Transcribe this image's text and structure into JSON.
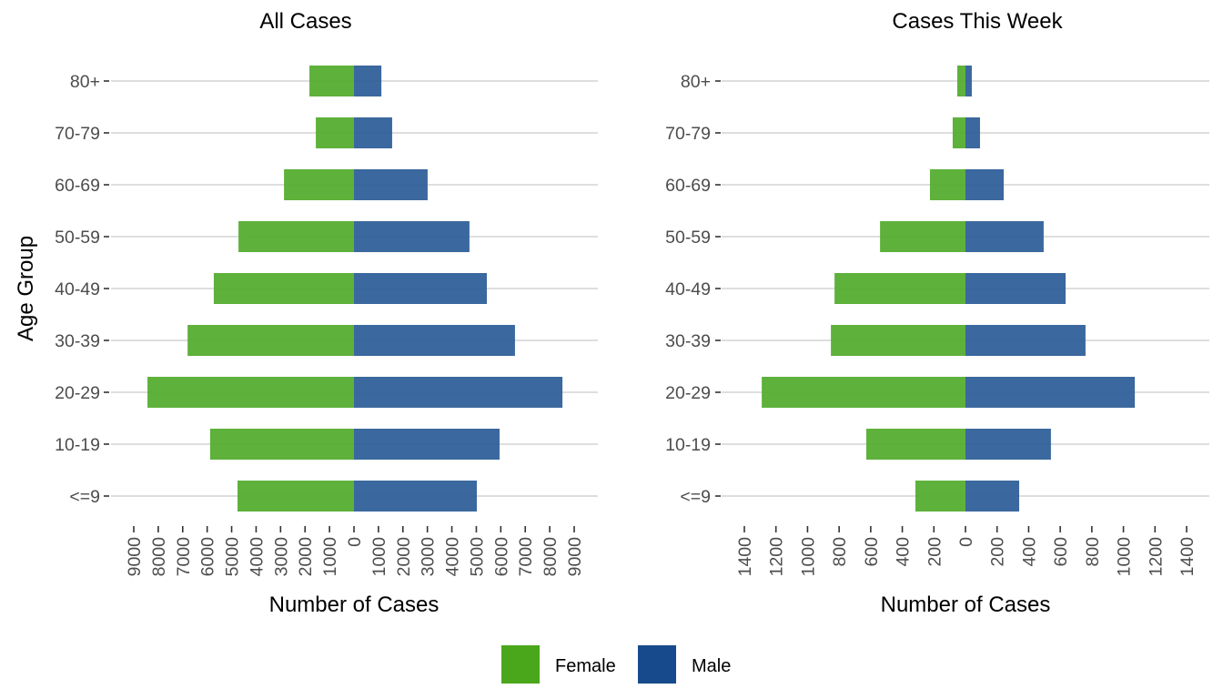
{
  "chart_data": [
    {
      "type": "bar",
      "orientation": "horizontal-diverging",
      "title": "All Cases",
      "xlabel": "Number of Cases",
      "ylabel": "Age Group",
      "categories": [
        "<=9",
        "10-19",
        "20-29",
        "30-39",
        "40-49",
        "50-59",
        "60-69",
        "70-79",
        "80+"
      ],
      "series": [
        {
          "name": "Female",
          "values": [
            4760,
            5880,
            8440,
            6800,
            5730,
            4720,
            2860,
            1560,
            1820
          ]
        },
        {
          "name": "Male",
          "values": [
            5020,
            5950,
            8520,
            6580,
            5430,
            4720,
            3010,
            1560,
            1120
          ]
        }
      ],
      "xlim": [
        -9000,
        9000
      ],
      "xticks": [
        -9000,
        -8000,
        -7000,
        -6000,
        -5000,
        -4000,
        -3000,
        -2000,
        -1000,
        0,
        1000,
        2000,
        3000,
        4000,
        5000,
        6000,
        7000,
        8000,
        9000
      ],
      "xtick_labels": [
        "9000",
        "8000",
        "7000",
        "6000",
        "5000",
        "4000",
        "3000",
        "2000",
        "1000",
        "0",
        "1000",
        "2000",
        "3000",
        "4000",
        "5000",
        "6000",
        "7000",
        "8000",
        "9000"
      ],
      "grid": "horizontal"
    },
    {
      "type": "bar",
      "orientation": "horizontal-diverging",
      "title": "Cases This Week",
      "xlabel": "Number of Cases",
      "ylabel": "",
      "categories": [
        "<=9",
        "10-19",
        "20-29",
        "30-39",
        "40-49",
        "50-59",
        "60-69",
        "70-79",
        "80+"
      ],
      "series": [
        {
          "name": "Female",
          "values": [
            317,
            628,
            1290,
            852,
            829,
            541,
            225,
            81,
            52
          ]
        },
        {
          "name": "Male",
          "values": [
            340,
            541,
            1072,
            760,
            634,
            495,
            242,
            92,
            40
          ]
        }
      ],
      "xlim": [
        -1400,
        1400
      ],
      "xticks": [
        -1400,
        -1200,
        -1000,
        -800,
        -600,
        -400,
        -200,
        0,
        200,
        400,
        600,
        800,
        1000,
        1200,
        1400
      ],
      "xtick_labels": [
        "1400",
        "1200",
        "1000",
        "800",
        "600",
        "400",
        "200",
        "0",
        "200",
        "400",
        "600",
        "800",
        "1000",
        "1200",
        "1400"
      ],
      "grid": "horizontal"
    }
  ],
  "legend": {
    "placement": "bottom",
    "items": [
      {
        "label": "Female",
        "color": "#4aa71b"
      },
      {
        "label": "Male",
        "color": "#174a8c"
      }
    ]
  },
  "colors": {
    "female_bar": "#55ad30",
    "male_bar": "#2a5b96"
  }
}
